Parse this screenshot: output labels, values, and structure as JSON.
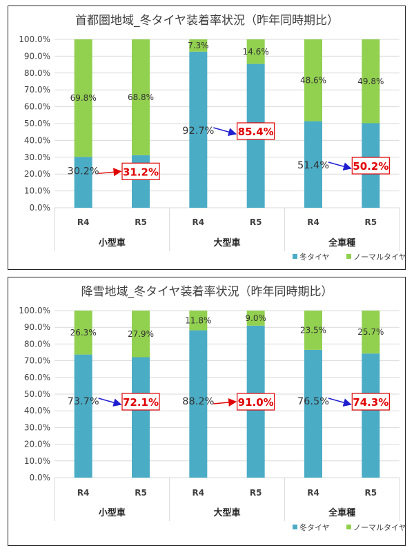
{
  "colors": {
    "winter": "#4bacc6",
    "normal": "#92d050",
    "grid": "#d9d9d9",
    "highlight": "#e00000",
    "arrow_red": "#e00000",
    "arrow_blue": "#1f1fd0"
  },
  "legend": {
    "position": "bottom-right"
  },
  "chart_data": [
    {
      "type": "bar",
      "stacked": true,
      "title": "首都圏地域_冬タイヤ装着率状況（昨年同時期比）",
      "ylim": [
        0,
        100
      ],
      "y_ticks": [
        "0.0%",
        "10.0%",
        "20.0%",
        "30.0%",
        "40.0%",
        "50.0%",
        "60.0%",
        "70.0%",
        "80.0%",
        "90.0%",
        "100.0%"
      ],
      "categories": [
        "R4",
        "R5",
        "R4",
        "R5",
        "R4",
        "R5"
      ],
      "groups": [
        "小型車",
        "大型車",
        "全車種"
      ],
      "series": [
        {
          "name": "冬タイヤ",
          "values": [
            30.2,
            31.2,
            92.7,
            85.4,
            51.4,
            50.2
          ]
        },
        {
          "name": "ノーマルタイヤ",
          "values": [
            69.8,
            68.8,
            7.3,
            14.6,
            48.6,
            49.8
          ]
        }
      ],
      "winter_labels": [
        "30.2%",
        "31.2%",
        "92.7%",
        "85.4%",
        "51.4%",
        "50.2%"
      ],
      "normal_labels": [
        "69.8%",
        "68.8%",
        "7.3%",
        "14.6%",
        "48.6%",
        "49.8%"
      ],
      "arrow_colors": [
        "red",
        "blue",
        "blue"
      ]
    },
    {
      "type": "bar",
      "stacked": true,
      "title": "降雪地域_冬タイヤ装着率状況（昨年同時期比）",
      "ylim": [
        0,
        100
      ],
      "y_ticks": [
        "0.0%",
        "10.0%",
        "20.0%",
        "30.0%",
        "40.0%",
        "50.0%",
        "60.0%",
        "70.0%",
        "80.0%",
        "90.0%",
        "100.0%"
      ],
      "categories": [
        "R4",
        "R5",
        "R4",
        "R5",
        "R4",
        "R5"
      ],
      "groups": [
        "小型車",
        "大型車",
        "全車種"
      ],
      "series": [
        {
          "name": "冬タイヤ",
          "values": [
            73.7,
            72.1,
            88.2,
            91.0,
            76.5,
            74.3
          ]
        },
        {
          "name": "ノーマルタイヤ",
          "values": [
            26.3,
            27.9,
            11.8,
            9.0,
            23.5,
            25.7
          ]
        }
      ],
      "winter_labels": [
        "73.7%",
        "72.1%",
        "88.2%",
        "91.0%",
        "76.5%",
        "74.3%"
      ],
      "normal_labels": [
        "26.3%",
        "27.9%",
        "11.8%",
        "9.0%",
        "23.5%",
        "25.7%"
      ],
      "arrow_colors": [
        "blue",
        "red",
        "blue"
      ]
    }
  ]
}
